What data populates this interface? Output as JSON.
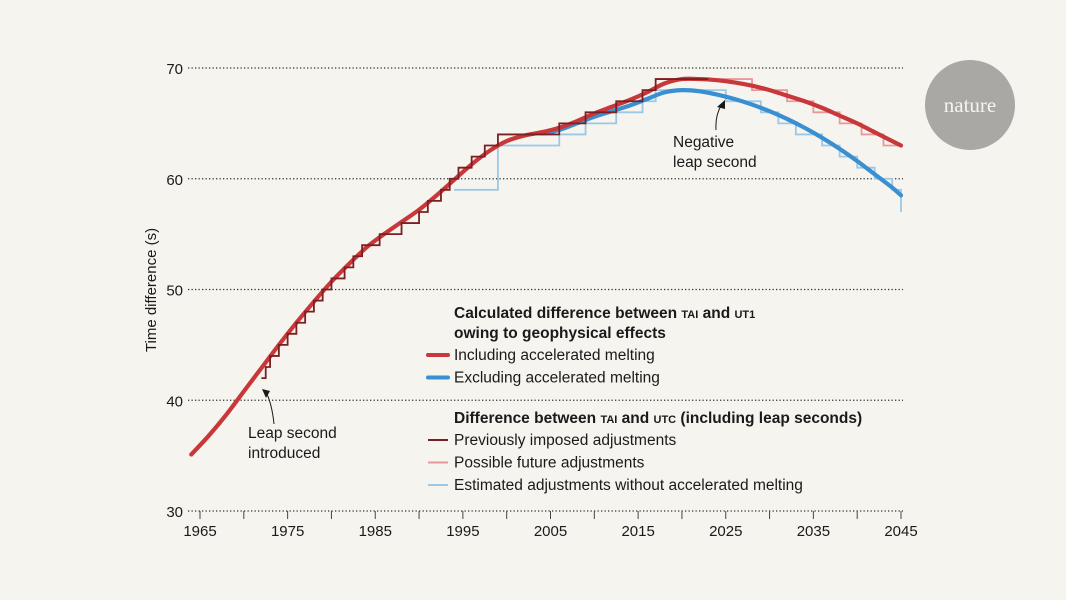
{
  "logo": {
    "text": "nature"
  },
  "chart_data": {
    "type": "line",
    "title": "",
    "xlabel": "",
    "ylabel": "Time difference (s)",
    "xlim": [
      1964,
      2045
    ],
    "ylim": [
      30,
      70
    ],
    "x_ticks": [
      1965,
      1970,
      1975,
      1980,
      1985,
      1990,
      1995,
      2000,
      2005,
      2010,
      2015,
      2020,
      2025,
      2030,
      2035,
      2040,
      2045
    ],
    "x_tick_labels": [
      "1965",
      "1975",
      "1985",
      "1995",
      "2005",
      "2015",
      "2025",
      "2035",
      "2045"
    ],
    "y_ticks": [
      30,
      40,
      50,
      60,
      70
    ],
    "y_tick_labels": [
      "30",
      "40",
      "50",
      "60",
      "70"
    ],
    "grid": "horizontal dotted",
    "series": [
      {
        "name": "Including accelerated melting",
        "color": "#c8373a",
        "kind": "smooth",
        "x": [
          1964,
          1966,
          1968,
          1970,
          1972,
          1974,
          1976,
          1978,
          1980,
          1982,
          1984,
          1986,
          1988,
          1990,
          1992,
          1994,
          1996,
          1998,
          2000,
          2002,
          2004,
          2006,
          2008,
          2010,
          2012,
          2014,
          2016,
          2018,
          2020,
          2022,
          2024,
          2026,
          2028,
          2030,
          2032,
          2034,
          2036,
          2038,
          2040,
          2042,
          2044,
          2045
        ],
        "y": [
          35.1,
          36.8,
          38.7,
          40.8,
          42.9,
          45.0,
          47.0,
          48.9,
          50.7,
          52.3,
          53.8,
          55.0,
          56.1,
          57.2,
          58.5,
          59.9,
          61.3,
          62.5,
          63.4,
          63.9,
          64.2,
          64.6,
          65.2,
          65.9,
          66.5,
          67.1,
          67.8,
          68.6,
          69.0,
          69.0,
          68.9,
          68.7,
          68.4,
          68.0,
          67.5,
          67.0,
          66.4,
          65.7,
          65.0,
          64.2,
          63.4,
          63.0
        ]
      },
      {
        "name": "Excluding accelerated melting",
        "color": "#3a8fd1",
        "kind": "smooth",
        "x": [
          2004,
          2006,
          2008,
          2010,
          2012,
          2014,
          2016,
          2018,
          2020,
          2022,
          2024,
          2026,
          2028,
          2030,
          2032,
          2034,
          2036,
          2038,
          2040,
          2042,
          2044,
          2045
        ],
        "y": [
          64.1,
          64.4,
          65.0,
          65.6,
          66.1,
          66.6,
          67.2,
          67.8,
          68.0,
          67.9,
          67.6,
          67.2,
          66.7,
          66.1,
          65.4,
          64.6,
          63.7,
          62.7,
          61.6,
          60.4,
          59.2,
          58.5
        ]
      },
      {
        "name": "Previously imposed adjustments",
        "color": "#7b1f22",
        "kind": "step",
        "x": [
          1972,
          1972.5,
          1973,
          1974,
          1975,
          1976,
          1977,
          1978,
          1979,
          1980,
          1981.5,
          1982.5,
          1983.5,
          1985.5,
          1988,
          1990,
          1991,
          1992.5,
          1993.5,
          1994.5,
          1996,
          1997.5,
          1999,
          2006,
          2009,
          2012.5,
          2015.5,
          2017,
          2023
        ],
        "y": [
          42,
          43,
          44,
          45,
          46,
          47,
          48,
          49,
          50,
          51,
          52,
          53,
          54,
          55,
          56,
          57,
          58,
          59,
          60,
          61,
          62,
          63,
          64,
          65,
          66,
          67,
          68,
          69,
          69
        ]
      },
      {
        "name": "Possible future adjustments",
        "color": "#e8989a",
        "kind": "step",
        "x": [
          2017,
          2028,
          2032,
          2035,
          2038,
          2040.5,
          2043,
          2045
        ],
        "y": [
          69,
          68,
          67,
          66,
          65,
          64,
          63,
          63
        ]
      },
      {
        "name": "Estimated adjustments without accelerated melting",
        "color": "#9cc8e6",
        "kind": "step",
        "x": [
          1994,
          1999,
          2001,
          2006,
          2009,
          2012.5,
          2015.5,
          2017,
          2022,
          2025,
          2029,
          2031,
          2033,
          2036,
          2038,
          2040,
          2042,
          2044,
          2045
        ],
        "y": [
          59,
          63,
          63,
          64,
          65,
          66,
          67,
          68,
          68,
          67,
          66,
          65,
          64,
          63,
          62,
          61,
          60,
          59,
          57
        ]
      }
    ],
    "legend": {
      "placement": "center-right",
      "groups": [
        {
          "heading": [
            "Calculated difference between TAI and UT1",
            "owing to geophysical effects"
          ],
          "entries": [
            {
              "label": "Including accelerated melting",
              "color": "#c8373a",
              "weight": "thick"
            },
            {
              "label": "Excluding accelerated melting",
              "color": "#3a8fd1",
              "weight": "thick"
            }
          ]
        },
        {
          "heading": [
            "Difference between TAI and UTC (including leap seconds)"
          ],
          "entries": [
            {
              "label": "Previously imposed adjustments",
              "color": "#7b1f22",
              "weight": "thin"
            },
            {
              "label": "Possible future adjustments",
              "color": "#e8989a",
              "weight": "thin"
            },
            {
              "label": "Estimated adjustments without accelerated melting",
              "color": "#9cc8e6",
              "weight": "thin"
            }
          ]
        }
      ]
    },
    "annotations": [
      {
        "text": [
          "Leap second",
          "introduced"
        ],
        "points_to": {
          "x": 1972,
          "y": 42
        }
      },
      {
        "text": [
          "Negative",
          "leap second"
        ],
        "points_to": {
          "x": 2022,
          "y": 68
        }
      }
    ]
  }
}
